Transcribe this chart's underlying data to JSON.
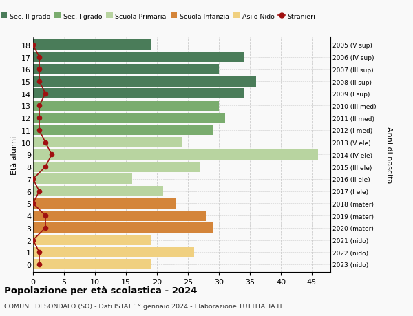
{
  "ages": [
    18,
    17,
    16,
    15,
    14,
    13,
    12,
    11,
    10,
    9,
    8,
    7,
    6,
    5,
    4,
    3,
    2,
    1,
    0
  ],
  "years": [
    "2005 (V sup)",
    "2006 (IV sup)",
    "2007 (III sup)",
    "2008 (II sup)",
    "2009 (I sup)",
    "2010 (III med)",
    "2011 (II med)",
    "2012 (I med)",
    "2013 (V ele)",
    "2014 (IV ele)",
    "2015 (III ele)",
    "2016 (II ele)",
    "2017 (I ele)",
    "2018 (mater)",
    "2019 (mater)",
    "2020 (mater)",
    "2021 (nido)",
    "2022 (nido)",
    "2023 (nido)"
  ],
  "values": [
    19,
    34,
    30,
    36,
    34,
    30,
    31,
    29,
    24,
    46,
    27,
    16,
    21,
    23,
    28,
    29,
    19,
    26,
    19
  ],
  "stranieri": [
    0,
    1,
    1,
    1,
    2,
    1,
    1,
    1,
    2,
    3,
    2,
    0,
    1,
    0,
    2,
    2,
    0,
    1,
    1
  ],
  "bar_colors": [
    "#4a7c59",
    "#4a7c59",
    "#4a7c59",
    "#4a7c59",
    "#4a7c59",
    "#7aac6e",
    "#7aac6e",
    "#7aac6e",
    "#b8d4a0",
    "#b8d4a0",
    "#b8d4a0",
    "#b8d4a0",
    "#b8d4a0",
    "#d4853a",
    "#d4853a",
    "#d4853a",
    "#f0d080",
    "#f0d080",
    "#f0d080"
  ],
  "legend_labels": [
    "Sec. II grado",
    "Sec. I grado",
    "Scuola Primaria",
    "Scuola Infanzia",
    "Asilo Nido",
    "Stranieri"
  ],
  "legend_colors": [
    "#4a7c59",
    "#7aac6e",
    "#b8d4a0",
    "#d4853a",
    "#f0d080",
    "#a01010"
  ],
  "stranieri_color": "#a01010",
  "ylabel": "Età alunni",
  "right_ylabel": "Anni di nascita",
  "title": "Popolazione per età scolastica - 2024",
  "subtitle": "COMUNE DI SONDALO (SO) - Dati ISTAT 1° gennaio 2024 - Elaborazione TUTTITALIA.IT",
  "xlim": [
    0,
    48
  ],
  "xticks": [
    0,
    5,
    10,
    15,
    20,
    25,
    30,
    35,
    40,
    45
  ],
  "bg_color": "#f9f9f9",
  "grid_color": "#cccccc"
}
